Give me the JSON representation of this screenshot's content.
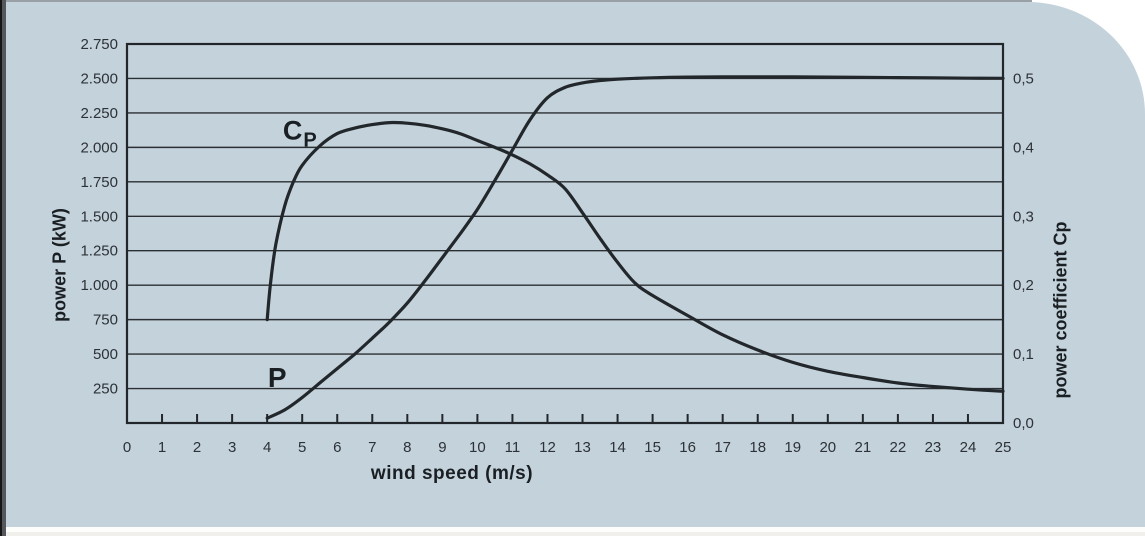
{
  "colors": {
    "card_background": "#c4d2db",
    "page_background": "#ffffff",
    "frame_line": "#22272b",
    "grid_line": "#2a2f33",
    "curve": "#22272b",
    "tick_text": "#2c3237",
    "title_text": "#1a1f23"
  },
  "chart_data": {
    "type": "line",
    "title": "",
    "xlabel": "wind speed (m/s)",
    "ylabel_left": "power P (kW)",
    "ylabel_right": "power coefficient Cp",
    "grid": "horizontal-only",
    "x_axis": {
      "min": 0,
      "max": 25,
      "ticks": [
        0,
        1,
        2,
        3,
        4,
        5,
        6,
        7,
        8,
        9,
        10,
        11,
        12,
        13,
        14,
        15,
        16,
        17,
        18,
        19,
        20,
        21,
        22,
        23,
        24,
        25
      ]
    },
    "y_left_axis": {
      "min": 0,
      "max": 2750,
      "grid_step": 250,
      "tick_labels": [
        {
          "value": 250,
          "label": "250"
        },
        {
          "value": 500,
          "label": "500"
        },
        {
          "value": 750,
          "label": "750"
        },
        {
          "value": 1000,
          "label": "1.000"
        },
        {
          "value": 1250,
          "label": "1.250"
        },
        {
          "value": 1500,
          "label": "1.500"
        },
        {
          "value": 1750,
          "label": "1.750"
        },
        {
          "value": 2000,
          "label": "2.000"
        },
        {
          "value": 2250,
          "label": "2.250"
        },
        {
          "value": 2500,
          "label": "2.500"
        },
        {
          "value": 2750,
          "label": "2.750"
        }
      ]
    },
    "y_right_axis": {
      "min": 0.0,
      "max": 0.55,
      "scale_to_left": 5000,
      "tick_labels": [
        {
          "value": 0.0,
          "label": "0,0"
        },
        {
          "value": 0.1,
          "label": "0,1"
        },
        {
          "value": 0.2,
          "label": "0,2"
        },
        {
          "value": 0.3,
          "label": "0,3"
        },
        {
          "value": 0.4,
          "label": "0,4"
        },
        {
          "value": 0.5,
          "label": "0,5"
        }
      ]
    },
    "series": [
      {
        "name": "P",
        "axis": "left",
        "units": "kW",
        "points": [
          [
            4,
            35
          ],
          [
            4.5,
            95
          ],
          [
            5,
            185
          ],
          [
            5.5,
            290
          ],
          [
            6,
            395
          ],
          [
            6.5,
            500
          ],
          [
            7,
            615
          ],
          [
            7.5,
            735
          ],
          [
            8,
            870
          ],
          [
            8.5,
            1030
          ],
          [
            9,
            1200
          ],
          [
            9.5,
            1370
          ],
          [
            10,
            1550
          ],
          [
            10.5,
            1760
          ],
          [
            11,
            1980
          ],
          [
            11.5,
            2200
          ],
          [
            12,
            2360
          ],
          [
            12.5,
            2435
          ],
          [
            13,
            2468
          ],
          [
            13.5,
            2485
          ],
          [
            14,
            2495
          ],
          [
            15,
            2505
          ],
          [
            16,
            2510
          ],
          [
            17,
            2512
          ],
          [
            18,
            2512
          ],
          [
            19,
            2511
          ],
          [
            20,
            2510
          ],
          [
            21,
            2508
          ],
          [
            22,
            2506
          ],
          [
            23,
            2504
          ],
          [
            24,
            2502
          ],
          [
            25,
            2501
          ]
        ]
      },
      {
        "name": "Cp",
        "axis": "right",
        "units": "",
        "points": [
          [
            4,
            0.15
          ],
          [
            4.1,
            0.205
          ],
          [
            4.25,
            0.26
          ],
          [
            4.5,
            0.315
          ],
          [
            4.75,
            0.35
          ],
          [
            5,
            0.374
          ],
          [
            5.5,
            0.402
          ],
          [
            6,
            0.42
          ],
          [
            6.5,
            0.428
          ],
          [
            7,
            0.433
          ],
          [
            7.5,
            0.436
          ],
          [
            8,
            0.435
          ],
          [
            8.5,
            0.432
          ],
          [
            9,
            0.427
          ],
          [
            9.5,
            0.42
          ],
          [
            10,
            0.41
          ],
          [
            10.5,
            0.4
          ],
          [
            11,
            0.389
          ],
          [
            11.5,
            0.376
          ],
          [
            12,
            0.36
          ],
          [
            12.5,
            0.34
          ],
          [
            13,
            0.305
          ],
          [
            13.5,
            0.268
          ],
          [
            14,
            0.233
          ],
          [
            14.5,
            0.203
          ],
          [
            15,
            0.185
          ],
          [
            16,
            0.156
          ],
          [
            17,
            0.128
          ],
          [
            18,
            0.106
          ],
          [
            19,
            0.088
          ],
          [
            20,
            0.075
          ],
          [
            21,
            0.066
          ],
          [
            22,
            0.058
          ],
          [
            23,
            0.053
          ],
          [
            24,
            0.049
          ],
          [
            25,
            0.046
          ]
        ]
      }
    ],
    "curve_labels": {
      "p": "P",
      "cp_main": "C",
      "cp_sub": "P"
    },
    "annotations": {
      "cp": {
        "x": 4.45,
        "y_left_equiv": 2120
      },
      "p": {
        "x": 4.02,
        "y_left_equiv": 330
      }
    }
  }
}
